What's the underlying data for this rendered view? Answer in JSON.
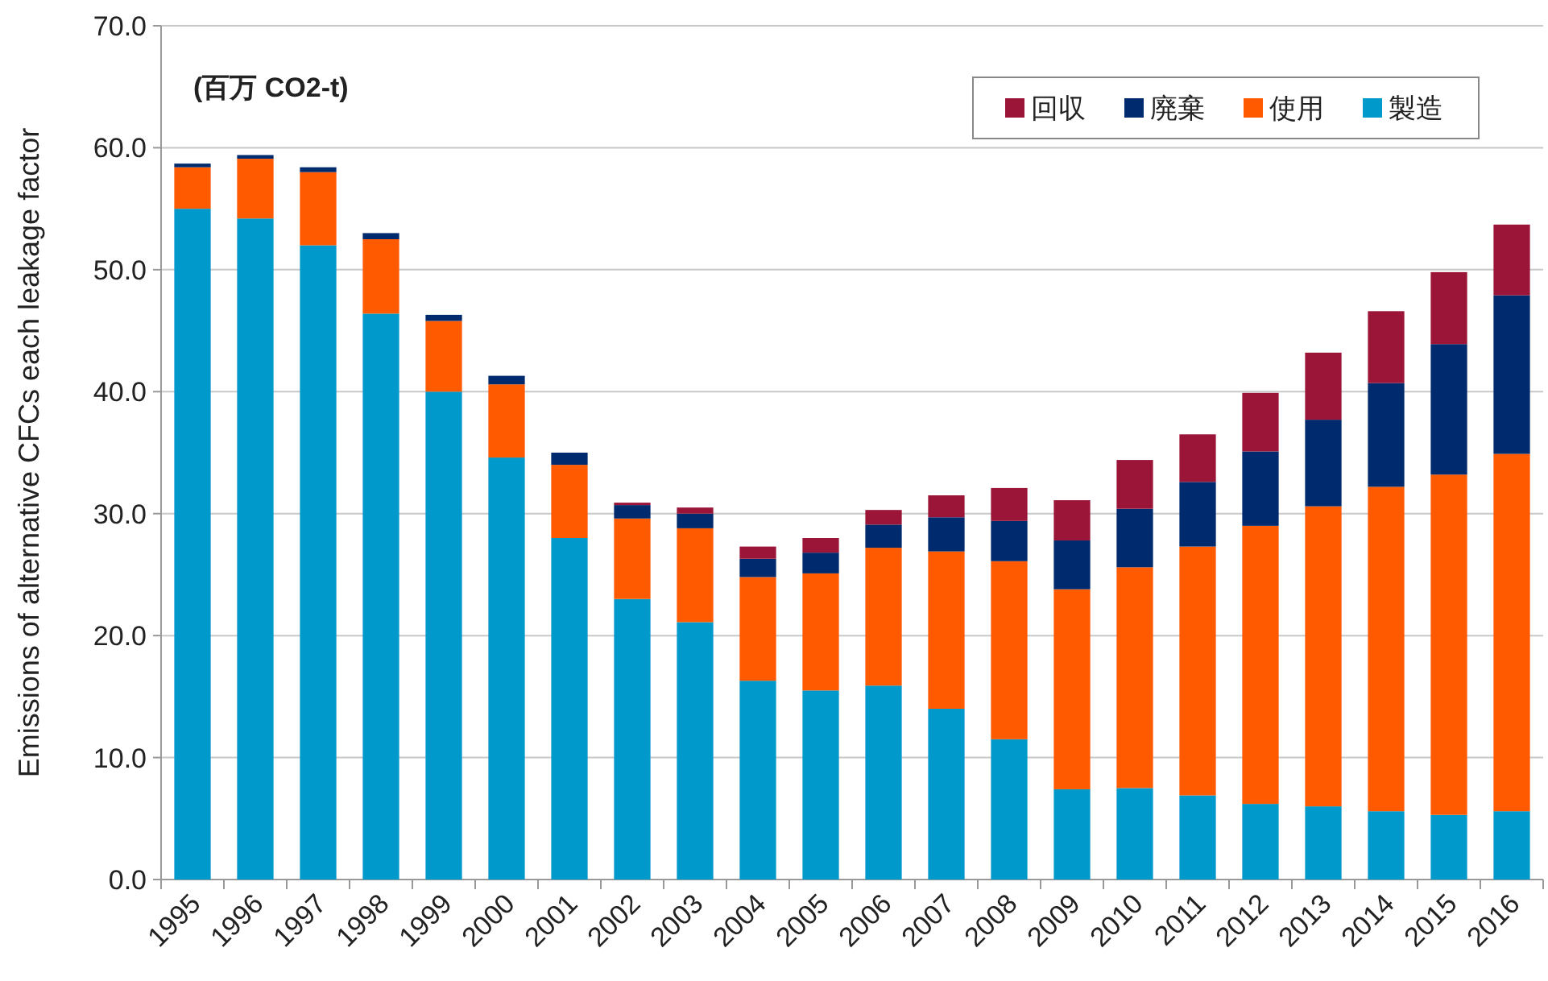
{
  "chart_data": {
    "type": "bar",
    "stacked": true,
    "ylabel": "Emissions of alternative CFCs each leakage factor",
    "annotations": [
      "(百万 CO2-t)"
    ],
    "categories": [
      "1995",
      "1996",
      "1997",
      "1998",
      "1999",
      "2000",
      "2001",
      "2002",
      "2003",
      "2004",
      "2005",
      "2006",
      "2007",
      "2008",
      "2009",
      "2010",
      "2011",
      "2012",
      "2013",
      "2014",
      "2015",
      "2016"
    ],
    "series": [
      {
        "name": "製造",
        "color": "#0099cc",
        "values": [
          55.0,
          54.2,
          52.0,
          46.4,
          40.0,
          34.6,
          28.0,
          23.0,
          21.1,
          16.3,
          15.5,
          15.9,
          14.0,
          11.5,
          7.4,
          7.5,
          6.9,
          6.2,
          6.0,
          5.6,
          5.3,
          5.6
        ]
      },
      {
        "name": "使用",
        "color": "#ff5a00",
        "values": [
          3.4,
          4.9,
          6.0,
          6.1,
          5.8,
          6.0,
          6.0,
          6.6,
          7.7,
          8.5,
          9.6,
          11.3,
          12.9,
          14.6,
          16.4,
          18.1,
          20.4,
          22.8,
          24.6,
          26.6,
          27.9,
          29.3
        ]
      },
      {
        "name": "廃棄",
        "color": "#002a6e",
        "values": [
          0.3,
          0.3,
          0.4,
          0.5,
          0.5,
          0.7,
          1.0,
          1.1,
          1.2,
          1.5,
          1.7,
          1.9,
          2.8,
          3.3,
          4.0,
          4.8,
          5.3,
          6.1,
          7.1,
          8.5,
          10.7,
          13.0
        ]
      },
      {
        "name": "回収",
        "color": "#9b1539",
        "values": [
          null,
          null,
          null,
          null,
          null,
          null,
          null,
          0.2,
          0.5,
          1.0,
          1.2,
          1.2,
          1.8,
          2.7,
          3.3,
          4.0,
          3.9,
          4.8,
          5.5,
          5.9,
          5.9,
          5.8
        ]
      }
    ],
    "ylim": [
      0,
      70
    ],
    "yticks": [
      {
        "value": 0,
        "label": "0.0"
      },
      {
        "value": 10,
        "label": "10.0"
      },
      {
        "value": 20,
        "label": "20.0"
      },
      {
        "value": 30,
        "label": "30.0"
      },
      {
        "value": 40,
        "label": "40.0"
      },
      {
        "value": 50,
        "label": "50.0"
      },
      {
        "value": 60,
        "label": "60.0"
      },
      {
        "value": 70,
        "label": "70.0"
      }
    ],
    "grid": "y",
    "legend": "top right"
  }
}
